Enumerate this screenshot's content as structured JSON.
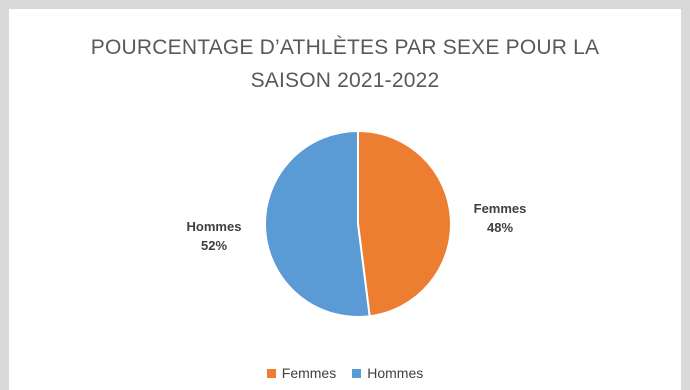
{
  "chart_data": {
    "type": "pie",
    "title_line1": "POURCENTAGE D’ATHLÈTES PAR SEXE POUR LA",
    "title_line2": "SAISON 2021-2022",
    "categories": [
      "Femmes",
      "Hommes"
    ],
    "values": [
      48,
      52
    ],
    "labels": [
      {
        "name": "Femmes",
        "pct": "48%"
      },
      {
        "name": "Hommes",
        "pct": "52%"
      }
    ],
    "colors": [
      "#ed7d31",
      "#5b9bd5"
    ],
    "legend_position": "bottom"
  }
}
